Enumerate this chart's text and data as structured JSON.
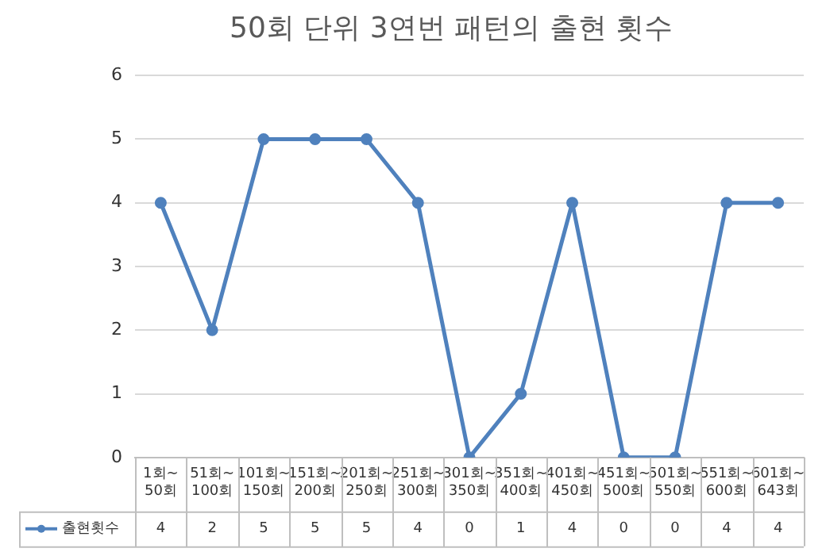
{
  "chart_data": {
    "type": "line",
    "title": "50회 단위 3연번 패턴의 출현 횟수",
    "categories": [
      "1회~50회",
      "51회~100회",
      "101회~150회",
      "151회~200회",
      "201회~250회",
      "251회~300회",
      "301회~350회",
      "351회~400회",
      "401회~450회",
      "451회~500회",
      "501회~550회",
      "551회~600회",
      "601회~643회"
    ],
    "series": [
      {
        "name": "출현횟수",
        "color": "#4f81bd",
        "values": [
          4,
          2,
          5,
          5,
          5,
          4,
          0,
          1,
          4,
          0,
          0,
          4,
          4
        ]
      }
    ],
    "ylim": [
      0,
      6
    ],
    "yticks": [
      0,
      1,
      2,
      3,
      4,
      5,
      6
    ],
    "grid": "y",
    "marker": "circle",
    "line_style": "solid",
    "legend": "bottom",
    "data_labels": true
  }
}
